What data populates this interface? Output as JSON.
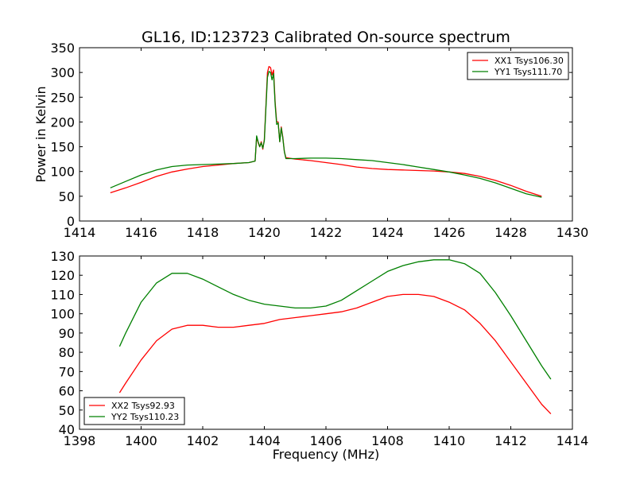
{
  "figure": {
    "title": "GL16, ID:123723 Calibrated On-source spectrum"
  },
  "chart_data": [
    {
      "type": "line",
      "title": "GL16, ID:123723 Calibrated On-source spectrum",
      "xlabel": "",
      "ylabel": "Power in Kelvin",
      "xlim": [
        1414,
        1430
      ],
      "ylim": [
        0,
        350
      ],
      "xticks": [
        1414,
        1416,
        1418,
        1420,
        1422,
        1424,
        1426,
        1428,
        1430
      ],
      "yticks": [
        0,
        50,
        100,
        150,
        200,
        250,
        300,
        350
      ],
      "grid": false,
      "legend_position": "top-right",
      "series": [
        {
          "name": "XX1 Tsys106.30",
          "color": "#ff0000",
          "x": [
            1415.0,
            1415.5,
            1416.0,
            1416.5,
            1417.0,
            1417.5,
            1418.0,
            1418.5,
            1419.0,
            1419.5,
            1419.7,
            1419.75,
            1419.8,
            1419.85,
            1419.9,
            1419.95,
            1420.0,
            1420.05,
            1420.1,
            1420.15,
            1420.2,
            1420.25,
            1420.3,
            1420.35,
            1420.4,
            1420.45,
            1420.5,
            1420.55,
            1420.6,
            1420.65,
            1420.7,
            1421.0,
            1421.5,
            1422.0,
            1422.5,
            1423.0,
            1423.5,
            1424.0,
            1424.5,
            1425.0,
            1425.5,
            1426.0,
            1426.5,
            1427.0,
            1427.5,
            1428.0,
            1428.5,
            1429.0
          ],
          "values": [
            57,
            67,
            78,
            90,
            99,
            105,
            110,
            113,
            116,
            118,
            121,
            170,
            158,
            150,
            160,
            145,
            165,
            230,
            300,
            312,
            310,
            295,
            305,
            240,
            200,
            200,
            160,
            190,
            170,
            140,
            128,
            125,
            122,
            118,
            114,
            109,
            106,
            104,
            103,
            102,
            101,
            99,
            96,
            90,
            82,
            72,
            60,
            50
          ]
        },
        {
          "name": "YY1 Tsys111.70",
          "color": "#008000",
          "x": [
            1415.0,
            1415.5,
            1416.0,
            1416.5,
            1417.0,
            1417.5,
            1418.0,
            1418.5,
            1419.0,
            1419.5,
            1419.7,
            1419.75,
            1419.8,
            1419.85,
            1419.9,
            1419.95,
            1420.0,
            1420.05,
            1420.1,
            1420.15,
            1420.2,
            1420.25,
            1420.3,
            1420.35,
            1420.4,
            1420.45,
            1420.5,
            1420.55,
            1420.6,
            1420.65,
            1420.7,
            1421.0,
            1421.5,
            1422.0,
            1422.5,
            1423.0,
            1423.5,
            1424.0,
            1424.5,
            1425.0,
            1425.5,
            1426.0,
            1426.5,
            1427.0,
            1427.5,
            1428.0,
            1428.5,
            1429.0
          ],
          "values": [
            67,
            80,
            93,
            103,
            110,
            113,
            114,
            115,
            116,
            118,
            121,
            172,
            160,
            150,
            158,
            147,
            162,
            225,
            290,
            302,
            300,
            285,
            298,
            235,
            195,
            198,
            160,
            188,
            168,
            140,
            126,
            126,
            127,
            127,
            126,
            124,
            122,
            118,
            114,
            109,
            104,
            99,
            93,
            86,
            77,
            66,
            55,
            48
          ]
        }
      ]
    },
    {
      "type": "line",
      "title": "",
      "xlabel": "Frequency (MHz)",
      "ylabel": "",
      "xlim": [
        1398,
        1414
      ],
      "ylim": [
        40,
        130
      ],
      "xticks": [
        1398,
        1400,
        1402,
        1404,
        1406,
        1408,
        1410,
        1412,
        1414
      ],
      "yticks": [
        40,
        50,
        60,
        70,
        80,
        90,
        100,
        110,
        120,
        130
      ],
      "grid": false,
      "legend_position": "bottom-left",
      "series": [
        {
          "name": "XX2 Tsys92.93",
          "color": "#ff0000",
          "x": [
            1399.3,
            1399.5,
            1400.0,
            1400.5,
            1401.0,
            1401.5,
            1402.0,
            1402.5,
            1403.0,
            1403.5,
            1404.0,
            1404.5,
            1405.0,
            1405.5,
            1406.0,
            1406.5,
            1407.0,
            1407.5,
            1408.0,
            1408.5,
            1409.0,
            1409.5,
            1410.0,
            1410.5,
            1411.0,
            1411.5,
            1412.0,
            1412.5,
            1413.0,
            1413.3
          ],
          "values": [
            59,
            64,
            76,
            86,
            92,
            94,
            94,
            93,
            93,
            94,
            95,
            97,
            98,
            99,
            100,
            101,
            103,
            106,
            109,
            110,
            110,
            109,
            106,
            102,
            95,
            86,
            75,
            64,
            53,
            48
          ]
        },
        {
          "name": "YY2 Tsys110.23",
          "color": "#008000",
          "x": [
            1399.3,
            1399.5,
            1400.0,
            1400.5,
            1401.0,
            1401.5,
            1402.0,
            1402.5,
            1403.0,
            1403.5,
            1404.0,
            1404.5,
            1405.0,
            1405.5,
            1406.0,
            1406.5,
            1407.0,
            1407.5,
            1408.0,
            1408.5,
            1409.0,
            1409.5,
            1410.0,
            1410.5,
            1411.0,
            1411.5,
            1412.0,
            1412.5,
            1413.0,
            1413.3
          ],
          "values": [
            83,
            90,
            106,
            116,
            121,
            121,
            118,
            114,
            110,
            107,
            105,
            104,
            103,
            103,
            104,
            107,
            112,
            117,
            122,
            125,
            127,
            128,
            128,
            126,
            121,
            111,
            99,
            86,
            73,
            66
          ]
        }
      ]
    }
  ]
}
